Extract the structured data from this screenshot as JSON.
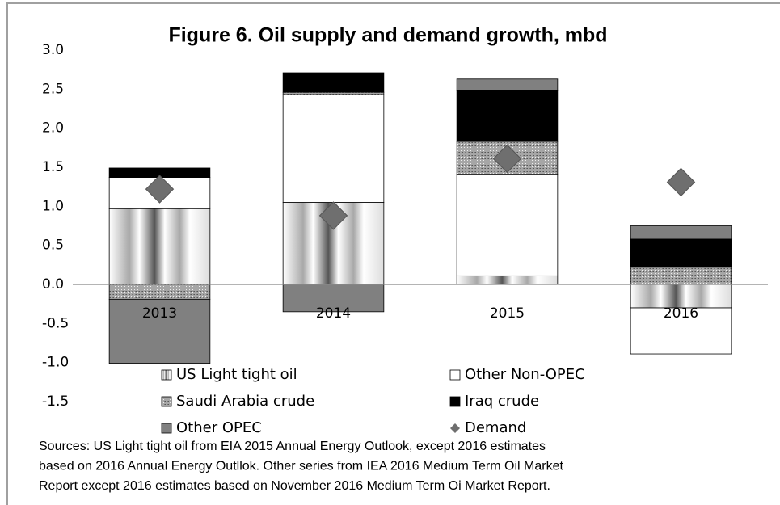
{
  "chart_data": {
    "type": "stacked_bar",
    "title": "Figure 6. Oil supply and demand growth, mbd",
    "categories": [
      "2013",
      "2014",
      "2015",
      "2016"
    ],
    "series": [
      {
        "name": "US Light tight oil",
        "color": "#a8a8a8",
        "values": [
          0.97,
          1.05,
          0.11,
          -0.3
        ]
      },
      {
        "name": "Other Non-OPEC",
        "color": "#ffffff",
        "values": [
          0.4,
          1.38,
          1.3,
          -0.59
        ]
      },
      {
        "name": "Saudi Arabia crude",
        "color": "#a6a6a6",
        "values": [
          -0.19,
          0.03,
          0.42,
          0.22
        ]
      },
      {
        "name": "Iraq crude",
        "color": "#000000",
        "values": [
          0.12,
          0.25,
          0.65,
          0.36
        ]
      },
      {
        "name": "Other OPEC",
        "color": "#808080",
        "values": [
          -0.82,
          -0.35,
          0.15,
          0.17
        ]
      },
      {
        "name": "Demand",
        "color": "#6f6f6f",
        "type": "scatter",
        "values": [
          1.22,
          0.88,
          1.61,
          1.31
        ]
      }
    ],
    "ylim": [
      -1.5,
      3.0
    ],
    "yticks": [
      {
        "value": 3.0,
        "label": "3.0"
      },
      2.5,
      {
        "value": 2.0,
        "label": "2.0"
      },
      1.5,
      {
        "value": 1.0,
        "label": "1.0"
      },
      0.5,
      {
        "value": 0.0,
        "label": "0.0"
      },
      -0.5,
      {
        "value": -1.0,
        "label": "-1.0"
      },
      -1.5
    ],
    "grid": false,
    "legend": "bottom",
    "note": [
      "Sources: US Light tight oil from EIA 2015 Annual Energy Outlook, except 2016 estimates",
      "based on 2016 Annual Energy Outllok. Other series from IEA 2016 Medium Term Oil Market",
      "Report except 2016 estimates based on November 2016 Medium Term Oi Market Report."
    ]
  }
}
